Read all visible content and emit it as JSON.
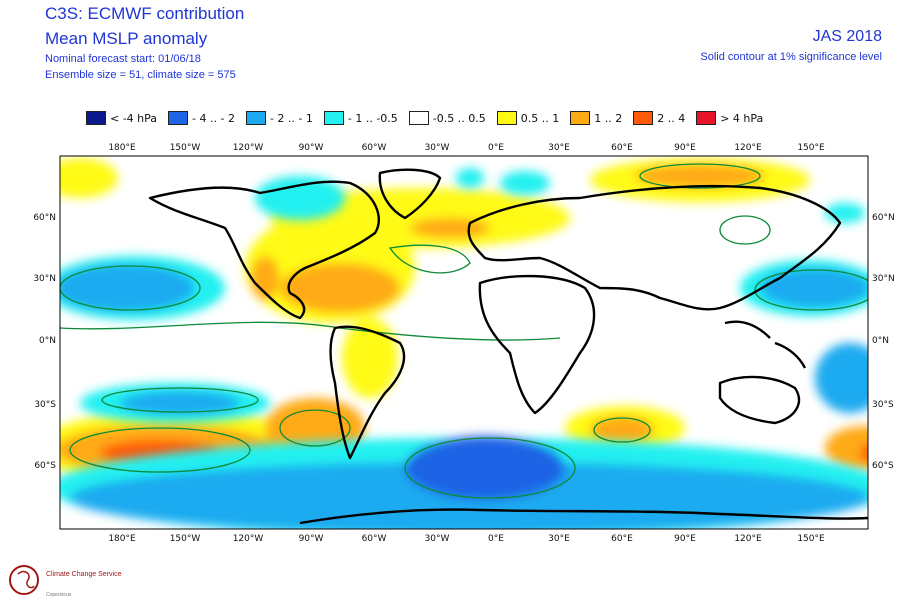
{
  "header": {
    "title": "C3S: ECMWF contribution",
    "subtitle": "Mean MSLP anomaly",
    "forecast_start": "Nominal forecast start: 01/06/18",
    "ensemble": "Ensemble size = 51, climate size = 575",
    "period": "JAS 2018",
    "significance_note": "Solid contour at 1% significance level"
  },
  "legend": [
    {
      "label": "< -4 hPa",
      "color": "#0a1a8c"
    },
    {
      "label": "- 4 .. - 2",
      "color": "#1e64e6"
    },
    {
      "label": "- 2 .. - 1",
      "color": "#1eaaf0"
    },
    {
      "label": "- 1 .. -0.5",
      "color": "#23f0f0"
    },
    {
      "label": "-0.5 .. 0.5",
      "color": "#ffffff"
    },
    {
      "label": "0.5 .. 1",
      "color": "#fffa14"
    },
    {
      "label": "1 .. 2",
      "color": "#ffaa14"
    },
    {
      "label": "2 .. 4",
      "color": "#ff5a0a"
    },
    {
      "label": "> 4 hPa",
      "color": "#e6142a"
    }
  ],
  "axes": {
    "longitude_labels": [
      "180°E",
      "150°W",
      "120°W",
      "90°W",
      "60°W",
      "30°W",
      "0°E",
      "30°E",
      "60°E",
      "90°E",
      "120°E",
      "150°E"
    ],
    "latitude_labels": [
      "60°N",
      "30°N",
      "0°N",
      "30°S",
      "60°S"
    ]
  },
  "logo": {
    "name": "Climate Change Service",
    "org": "Copernicus"
  }
}
